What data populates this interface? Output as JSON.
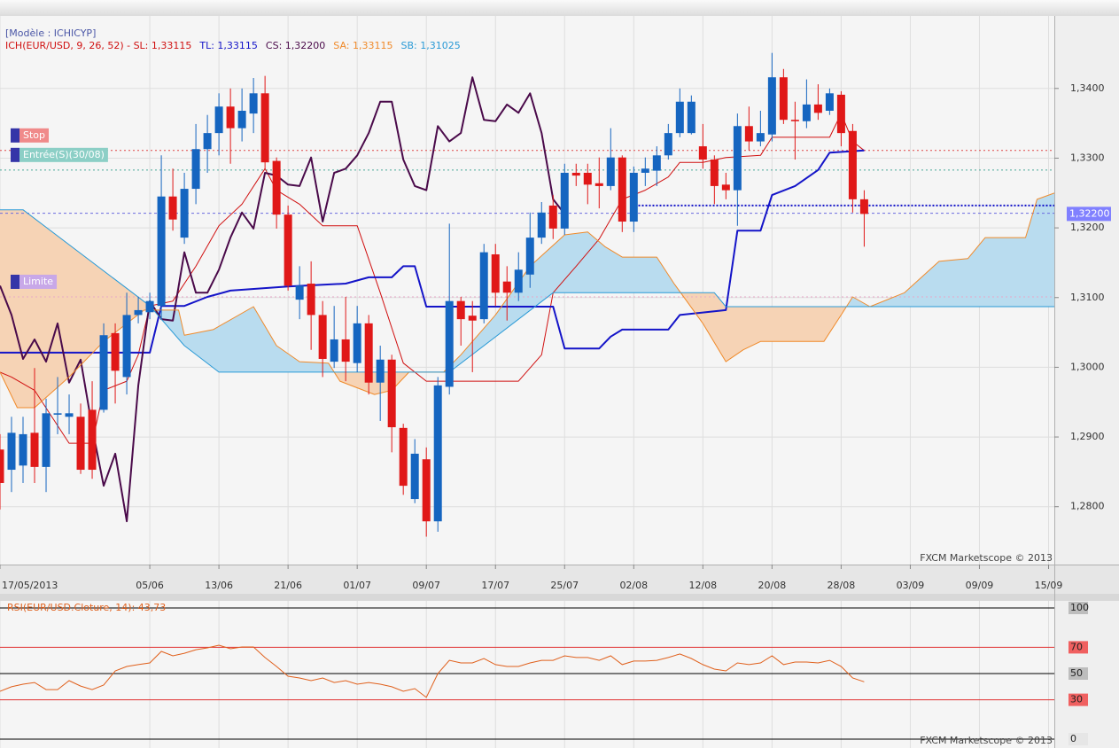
{
  "chart_data": [
    {
      "type": "candlestick",
      "model": "[Modèle : ICHICYP]",
      "watermark": "FXCM Marketscope © 2013",
      "xlim": [
        0,
        91.5
      ],
      "xticks": [
        {
          "value": 0,
          "label": "17/05/2013"
        },
        {
          "value": 13,
          "label": "05/06"
        },
        {
          "value": 19,
          "label": "13/06"
        },
        {
          "value": 25,
          "label": "21/06"
        },
        {
          "value": 31,
          "label": "01/07"
        },
        {
          "value": 37,
          "label": "09/07"
        },
        {
          "value": 43,
          "label": "17/07"
        },
        {
          "value": 49,
          "label": "25/07"
        },
        {
          "value": 55,
          "label": "02/08"
        },
        {
          "value": 61,
          "label": "12/08"
        },
        {
          "value": 67,
          "label": "20/08"
        },
        {
          "value": 73,
          "label": "28/08"
        },
        {
          "value": 79,
          "label": "03/09"
        },
        {
          "value": 85,
          "label": "09/09"
        },
        {
          "value": 91,
          "label": "15/09"
        }
      ],
      "ylim": [
        1.2717,
        1.3504
      ],
      "yticks": [
        {
          "value": 1.28,
          "label": "1,2800"
        },
        {
          "value": 1.29,
          "label": "1,2900"
        },
        {
          "value": 1.3,
          "label": "1,3000"
        },
        {
          "value": 1.31,
          "label": "1,3100"
        },
        {
          "value": 1.32,
          "label": "1,3200"
        },
        {
          "value": 1.33,
          "label": "1,3300"
        },
        {
          "value": 1.34,
          "label": "1,3400"
        }
      ],
      "grid": true,
      "up_color": "#1565c0",
      "down_color": "#e01818",
      "cloud_up_color": "#b9dcef",
      "cloud_down_color": "#f6d3b5",
      "x": [
        0,
        1,
        2,
        3,
        4,
        5,
        6,
        7,
        8,
        9,
        10,
        11,
        12,
        13,
        14,
        15,
        16,
        17,
        18,
        19,
        20,
        21,
        22,
        23,
        24,
        25,
        26,
        27,
        28,
        29,
        30,
        31,
        32,
        33,
        34,
        35,
        36,
        37,
        38,
        39,
        40,
        41,
        42,
        43,
        44,
        45,
        46,
        47,
        48,
        49,
        50,
        51,
        52,
        53,
        54,
        55,
        56,
        57,
        58,
        59,
        60,
        61,
        62,
        63,
        64,
        65,
        66,
        67,
        68,
        69,
        70,
        71,
        72,
        73,
        74,
        75
      ],
      "open": [
        1.2882,
        1.2853,
        1.2859,
        1.2906,
        1.2857,
        1.2932,
        1.2929,
        1.2929,
        1.2939,
        1.2939,
        1.3049,
        1.2986,
        1.3075,
        1.3079,
        1.3088,
        1.3245,
        1.3186,
        1.3256,
        1.3313,
        1.3336,
        1.3374,
        1.3343,
        1.3364,
        1.3393,
        1.3296,
        1.3219,
        1.3097,
        1.312,
        1.3075,
        1.3008,
        1.304,
        1.3006,
        1.3063,
        1.2978,
        1.3011,
        1.2913,
        1.2811,
        1.2868,
        1.2779,
        1.2972,
        1.3095,
        1.3074,
        1.3069,
        1.3162,
        1.3123,
        1.3107,
        1.3133,
        1.3186,
        1.3232,
        1.3199,
        1.3279,
        1.3279,
        1.3264,
        1.326,
        1.3301,
        1.3209,
        1.3279,
        1.3282,
        1.3304,
        1.3336,
        1.3336,
        1.3317,
        1.3298,
        1.3262,
        1.3254,
        1.3346,
        1.3324,
        1.3334,
        1.3416,
        1.3355,
        1.3353,
        1.3377,
        1.3368,
        1.3391,
        1.3339,
        1.3241
      ],
      "high": [
        1.2904,
        1.2929,
        1.2929,
        1.2999,
        1.2955,
        1.2986,
        1.2961,
        1.2948,
        1.298,
        1.3063,
        1.3063,
        1.3107,
        1.3101,
        1.3107,
        1.3304,
        1.3285,
        1.3279,
        1.3349,
        1.3362,
        1.3393,
        1.34,
        1.34,
        1.3415,
        1.3418,
        1.3301,
        1.3232,
        1.3145,
        1.3152,
        1.3095,
        1.3088,
        1.3101,
        1.3088,
        1.3075,
        1.3031,
        1.3018,
        1.2919,
        1.2897,
        1.2885,
        1.2986,
        1.3206,
        1.3101,
        1.3095,
        1.3177,
        1.3177,
        1.3145,
        1.3165,
        1.3222,
        1.3237,
        1.3247,
        1.3292,
        1.3292,
        1.3292,
        1.3301,
        1.3343,
        1.3304,
        1.3288,
        1.3301,
        1.3317,
        1.3349,
        1.34,
        1.339,
        1.3349,
        1.3304,
        1.3279,
        1.3364,
        1.3374,
        1.3368,
        1.3451,
        1.3428,
        1.3381,
        1.3413,
        1.3406,
        1.34,
        1.3396,
        1.3349,
        1.3254
      ],
      "low": [
        1.2796,
        1.2821,
        1.2834,
        1.2834,
        1.2821,
        1.2904,
        1.2904,
        1.2847,
        1.284,
        1.2935,
        1.2948,
        1.2961,
        1.3063,
        1.3069,
        1.3069,
        1.3196,
        1.3177,
        1.3234,
        1.3279,
        1.3304,
        1.3292,
        1.3324,
        1.3336,
        1.3285,
        1.3199,
        1.311,
        1.3069,
        1.3025,
        1.2986,
        1.2999,
        1.298,
        1.2993,
        1.2961,
        1.2923,
        1.2878,
        1.2817,
        1.2805,
        1.2757,
        1.2764,
        1.2961,
        1.3031,
        1.2993,
        1.3063,
        1.3088,
        1.3067,
        1.3095,
        1.3114,
        1.3177,
        1.3184,
        1.319,
        1.326,
        1.3234,
        1.3228,
        1.3254,
        1.3194,
        1.3194,
        1.326,
        1.326,
        1.3298,
        1.333,
        1.3334,
        1.3285,
        1.3234,
        1.3241,
        1.3203,
        1.3311,
        1.3317,
        1.3324,
        1.3349,
        1.3298,
        1.3343,
        1.3355,
        1.3362,
        1.3317,
        1.3222,
        1.3173
      ],
      "close": [
        1.2834,
        1.2906,
        1.2904,
        1.2857,
        1.2934,
        1.2934,
        1.2934,
        1.2853,
        1.2853,
        1.3046,
        1.2995,
        1.3075,
        1.3082,
        1.3095,
        1.3245,
        1.3212,
        1.3256,
        1.3313,
        1.3336,
        1.3374,
        1.3343,
        1.3368,
        1.3393,
        1.3294,
        1.3219,
        1.3117,
        1.3117,
        1.3075,
        1.3012,
        1.304,
        1.3008,
        1.3063,
        1.2978,
        1.3011,
        1.2914,
        1.283,
        1.2876,
        1.2779,
        1.2974,
        1.3095,
        1.3069,
        1.3067,
        1.3165,
        1.3107,
        1.3107,
        1.314,
        1.3186,
        1.3222,
        1.3199,
        1.3279,
        1.3275,
        1.3262,
        1.326,
        1.3301,
        1.3209,
        1.3279,
        1.3285,
        1.3304,
        1.3336,
        1.3381,
        1.3381,
        1.3298,
        1.326,
        1.3254,
        1.3346,
        1.3324,
        1.3336,
        1.3416,
        1.3355,
        1.3353,
        1.3377,
        1.3365,
        1.3393,
        1.3336,
        1.3241,
        1.322
      ],
      "lines": [
        {
          "legend": "ICH(EUR/USD, 9, 26, 52) -  SL: 1,33115",
          "color": "#d01010",
          "width": 1,
          "x": [
            0,
            1,
            3,
            6,
            8,
            9,
            11,
            12,
            13,
            15,
            17,
            19,
            21,
            23,
            24,
            26,
            28,
            31,
            33,
            35,
            37,
            45,
            47,
            48,
            50,
            52,
            54,
            56,
            58,
            59,
            61,
            63,
            66,
            67,
            69,
            72,
            73,
            74,
            75
          ],
          "values": [
            1.2993,
            1.2986,
            1.2967,
            1.2891,
            1.2891,
            1.2967,
            1.298,
            1.3018,
            1.3088,
            1.3095,
            1.3145,
            1.3203,
            1.3234,
            1.3285,
            1.3254,
            1.3234,
            1.3203,
            1.3203,
            1.3107,
            1.3006,
            1.298,
            1.298,
            1.3018,
            1.3107,
            1.3145,
            1.3184,
            1.3241,
            1.3254,
            1.3273,
            1.3294,
            1.3294,
            1.3301,
            1.3304,
            1.333,
            1.333,
            1.333,
            1.3364,
            1.3324,
            1.3311
          ]
        },
        {
          "legend": "TL: 1,33115",
          "color": "#1414c8",
          "width": 2,
          "x": [
            0,
            13,
            14,
            16,
            18,
            20,
            25,
            30,
            32,
            34,
            35,
            36,
            37,
            48,
            49,
            52,
            53,
            54,
            58,
            59,
            63,
            64,
            66,
            67,
            69,
            71,
            72,
            75
          ],
          "values": [
            1.3021,
            1.3021,
            1.3088,
            1.3088,
            1.3101,
            1.311,
            1.3116,
            1.312,
            1.3129,
            1.3129,
            1.3145,
            1.3145,
            1.3087,
            1.3087,
            1.3027,
            1.3027,
            1.3044,
            1.3054,
            1.3054,
            1.3075,
            1.3082,
            1.3196,
            1.3196,
            1.3247,
            1.326,
            1.3283,
            1.3308,
            1.3311
          ]
        },
        {
          "legend": "CS: 1,32200",
          "color": "#4a0a4a",
          "width": 2,
          "x": [
            0,
            1,
            2,
            3,
            4,
            5,
            6,
            7,
            8,
            9,
            10,
            11,
            12,
            13,
            14,
            15,
            16,
            17,
            18,
            19,
            20,
            21,
            22,
            23,
            24,
            25,
            26,
            27,
            28,
            29,
            30,
            31,
            32,
            33,
            34,
            35,
            36,
            37,
            38,
            39,
            40,
            41,
            42,
            43,
            44,
            45,
            46,
            47,
            48,
            49
          ],
          "values": [
            1.3117,
            1.3075,
            1.3012,
            1.304,
            1.3008,
            1.3063,
            1.2978,
            1.3011,
            1.2914,
            1.283,
            1.2876,
            1.2779,
            1.2974,
            1.3095,
            1.3069,
            1.3067,
            1.3165,
            1.3107,
            1.3107,
            1.314,
            1.3186,
            1.3222,
            1.3199,
            1.3279,
            1.3275,
            1.3262,
            1.326,
            1.3301,
            1.3209,
            1.3279,
            1.3285,
            1.3304,
            1.3336,
            1.3381,
            1.3381,
            1.3298,
            1.326,
            1.3254,
            1.3346,
            1.3324,
            1.3336,
            1.3416,
            1.3355,
            1.3353,
            1.3377,
            1.3365,
            1.3393,
            1.3336,
            1.3241,
            1.322
          ]
        },
        {
          "legend": "SA: 1,33115",
          "color": "#f08a2a",
          "width": 1,
          "x": [
            0,
            1.5,
            3,
            6,
            9,
            12.5,
            15.5,
            16,
            18.5,
            22,
            24,
            26,
            28.5,
            29.5,
            32.5,
            34,
            35.5,
            38.5,
            40,
            43,
            46,
            49,
            51,
            52.5,
            54,
            57,
            58.5,
            61,
            63,
            64.5,
            66,
            71.5,
            73,
            74,
            75.5,
            78.5,
            81.5,
            84,
            85.5,
            89,
            90,
            91.5
          ],
          "values": [
            1.2993,
            1.2942,
            1.2942,
            1.2986,
            1.3037,
            1.3082,
            1.3082,
            1.3046,
            1.3054,
            1.3087,
            1.3031,
            1.3008,
            1.3006,
            1.298,
            1.2961,
            1.2967,
            1.2993,
            1.2993,
            1.3018,
            1.3075,
            1.3145,
            1.319,
            1.3194,
            1.3173,
            1.3158,
            1.3158,
            1.312,
            1.3063,
            1.3008,
            1.3025,
            1.3037,
            1.3037,
            1.3075,
            1.3101,
            1.3087,
            1.3107,
            1.3152,
            1.3156,
            1.3186,
            1.3186,
            1.3241,
            1.325
          ]
        },
        {
          "legend": "SB: 1,31025",
          "color": "#2a9ad6",
          "width": 1,
          "x": [
            0,
            2,
            11.5,
            13,
            16,
            19,
            39,
            48,
            62,
            63,
            91.5
          ],
          "values": [
            1.3226,
            1.3226,
            1.3107,
            1.3088,
            1.3031,
            1.2993,
            1.2993,
            1.3107,
            1.3107,
            1.3087,
            1.3087
          ]
        }
      ],
      "levels": [
        {
          "value": 1.3311,
          "color": "#e04848",
          "dash": "2 3",
          "width": 1,
          "label": "Stop",
          "label_color": "#f08a8a"
        },
        {
          "value": 1.3283,
          "color": "#48a898",
          "dash": "2 3",
          "width": 1,
          "label": "Entrée(S)(30/08)",
          "label_color": "#8ccfc6"
        },
        {
          "value": 1.3221,
          "color": "#6a6ae0",
          "dash": "3 3",
          "width": 1
        },
        {
          "value": 1.3232,
          "color": "#1414c8",
          "dash": "2 2",
          "width": 2,
          "from": 55.4
        },
        {
          "value": 1.3101,
          "color": "#e8a8c8",
          "dash": "2 3",
          "width": 1,
          "label": "Limite",
          "label_color": "#c8a8e8"
        }
      ],
      "last_price": {
        "value": 1.322,
        "label": "1,32200",
        "color": "#8080ff"
      }
    },
    {
      "type": "line",
      "title": "RSI(EUR/USD.Cloture, 14): 43,73",
      "watermark": "FXCM Marketscope © 2013",
      "color": "#e0601c",
      "xlim": [
        0,
        91.5
      ],
      "ylim": [
        0,
        100
      ],
      "yticks": [
        100,
        70,
        50,
        30,
        0
      ],
      "tick_styles": [
        {
          "line": "#000000",
          "box": "#bdbdbd"
        },
        {
          "line": "#e03030",
          "box": "#f06060"
        },
        {
          "line": "#000000",
          "box": "#bdbdbd"
        },
        {
          "line": "#e03030",
          "box": "#f06060"
        },
        {
          "line": "#000000",
          "box": "#e6e6e6"
        }
      ],
      "x": [
        0,
        1,
        2,
        3,
        4,
        5,
        6,
        7,
        8,
        9,
        10,
        11,
        12,
        13,
        14,
        15,
        16,
        17,
        18,
        19,
        20,
        21,
        22,
        23,
        24,
        25,
        26,
        27,
        28,
        29,
        30,
        31,
        32,
        33,
        34,
        35,
        36,
        37,
        38,
        39,
        40,
        41,
        42,
        43,
        44,
        45,
        46,
        47,
        48,
        49,
        50,
        51,
        52,
        53,
        54,
        55,
        56,
        57,
        58,
        59,
        60,
        61,
        62,
        63,
        64,
        65,
        66,
        67,
        68,
        69,
        70,
        71,
        72,
        73,
        74,
        75
      ],
      "values": [
        36.5,
        39.9,
        41.9,
        43.2,
        37.8,
        37.8,
        44.6,
        40.5,
        37.8,
        41.2,
        52.0,
        55.4,
        56.8,
        58.1,
        66.9,
        63.5,
        65.5,
        68.2,
        69.6,
        71.6,
        68.9,
        70.3,
        70.3,
        62.2,
        55.4,
        48.0,
        46.6,
        44.6,
        46.6,
        43.2,
        44.6,
        41.9,
        43.2,
        41.9,
        39.9,
        36.5,
        38.5,
        31.8,
        50.0,
        60.1,
        58.1,
        58.1,
        61.5,
        56.8,
        55.4,
        55.4,
        58.1,
        60.1,
        60.1,
        63.5,
        62.2,
        62.2,
        60.1,
        63.5,
        56.8,
        59.5,
        59.5,
        60.1,
        62.2,
        64.9,
        61.5,
        56.8,
        53.4,
        52.0,
        58.1,
        56.8,
        58.1,
        63.5,
        56.8,
        58.8,
        58.8,
        58.1,
        60.1,
        55.4,
        46.6,
        43.73
      ]
    }
  ]
}
